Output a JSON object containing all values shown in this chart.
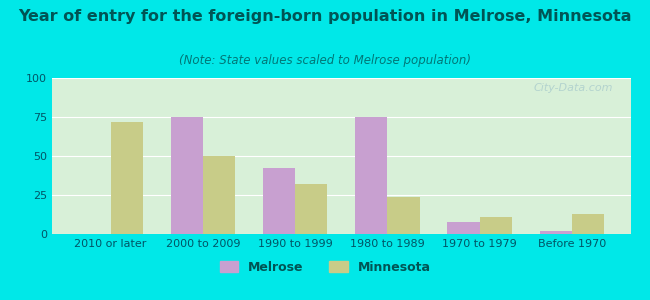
{
  "title": "Year of entry for the foreign-born population in Melrose, Minnesota",
  "subtitle": "(Note: State values scaled to Melrose population)",
  "categories": [
    "2010 or later",
    "2000 to 2009",
    "1990 to 1999",
    "1980 to 1989",
    "1970 to 1979",
    "Before 1970"
  ],
  "melrose_values": [
    0,
    75,
    42,
    75,
    8,
    2
  ],
  "minnesota_values": [
    72,
    50,
    32,
    24,
    11,
    13
  ],
  "melrose_color": "#c8a0d0",
  "minnesota_color": "#c8cc88",
  "background_outer": "#00e8e8",
  "background_inner_top": "#d8f0d8",
  "background_inner_bottom": "#e8f8e8",
  "title_color": "#005555",
  "subtitle_color": "#007777",
  "tick_color": "#005566",
  "ylim": [
    0,
    100
  ],
  "yticks": [
    0,
    25,
    50,
    75,
    100
  ],
  "bar_width": 0.35,
  "title_fontsize": 11.5,
  "subtitle_fontsize": 8.5,
  "tick_fontsize": 8,
  "legend_fontsize": 9,
  "watermark_text": "City-Data.com",
  "ylabel": "",
  "xlabel": ""
}
